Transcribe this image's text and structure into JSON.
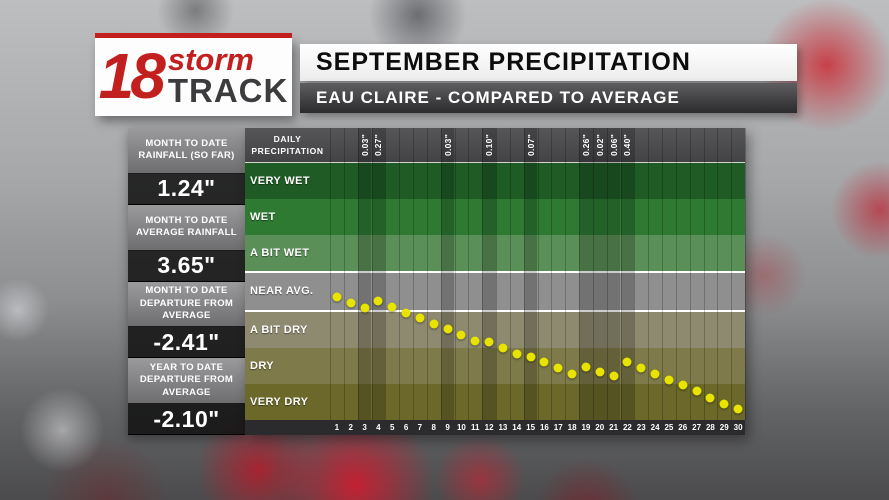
{
  "logo": {
    "number": "18",
    "storm": "storm",
    "track": "TRACK"
  },
  "header": {
    "title": "SEPTEMBER PRECIPITATION",
    "subtitle": "EAU CLAIRE - COMPARED TO AVERAGE"
  },
  "stats": [
    {
      "label": "MONTH TO DATE RAINFALL (SO FAR)",
      "value": "1.24\""
    },
    {
      "label": "MONTH TO DATE AVERAGE RAINFALL",
      "value": "3.65\""
    },
    {
      "label": "MONTH TO DATE DEPARTURE FROM AVERAGE",
      "value": "-2.41\""
    },
    {
      "label": "YEAR TO DATE DEPARTURE FROM AVERAGE",
      "value": "-2.10\""
    }
  ],
  "chart_data": {
    "type": "scatter",
    "title": "SEPTEMBER PRECIPITATION",
    "subtitle": "EAU CLAIRE - COMPARED TO AVERAGE",
    "header_label": "DAILY PRECIPITATION",
    "units": "inches",
    "band_unit_inches": 0.75,
    "dot_color": "#e8e400",
    "grid": true,
    "bands": [
      {
        "label": "VERY WET",
        "color": "#1f5b25"
      },
      {
        "label": "WET",
        "color": "#2e7a33"
      },
      {
        "label": "A BIT WET",
        "color": "#5b8f58"
      },
      {
        "label": "NEAR AVG.",
        "color": "#8f8f8f",
        "highlight": true
      },
      {
        "label": "A BIT DRY",
        "color": "#8e8a70"
      },
      {
        "label": "DRY",
        "color": "#7e7a49"
      },
      {
        "label": "VERY DRY",
        "color": "#6b682a"
      }
    ],
    "x_ticks": [
      1,
      2,
      3,
      4,
      5,
      6,
      7,
      8,
      9,
      10,
      11,
      12,
      13,
      14,
      15,
      16,
      17,
      18,
      19,
      20,
      21,
      22,
      23,
      24,
      25,
      26,
      27,
      28,
      29,
      30
    ],
    "daily_precip": [
      {
        "day": 3,
        "label": "0.03\""
      },
      {
        "day": 4,
        "label": "0.27\""
      },
      {
        "day": 9,
        "label": "0.03\""
      },
      {
        "day": 12,
        "label": "0.10\""
      },
      {
        "day": 15,
        "label": "0.07\""
      },
      {
        "day": 19,
        "label": "0.26\""
      },
      {
        "day": 20,
        "label": "0.02\""
      },
      {
        "day": 21,
        "label": "0.06\""
      },
      {
        "day": 22,
        "label": "0.40\""
      }
    ],
    "series": [
      {
        "name": "departure from average (inches)",
        "values": [
          -0.12,
          -0.24,
          -0.34,
          -0.19,
          -0.31,
          -0.43,
          -0.55,
          -0.67,
          -0.77,
          -0.89,
          -1.01,
          -1.03,
          -1.15,
          -1.27,
          -1.33,
          -1.45,
          -1.57,
          -1.69,
          -1.55,
          -1.65,
          -1.72,
          -1.44,
          -1.56,
          -1.68,
          -1.8,
          -1.92,
          -2.04,
          -2.17,
          -2.29,
          -2.41
        ]
      }
    ]
  }
}
